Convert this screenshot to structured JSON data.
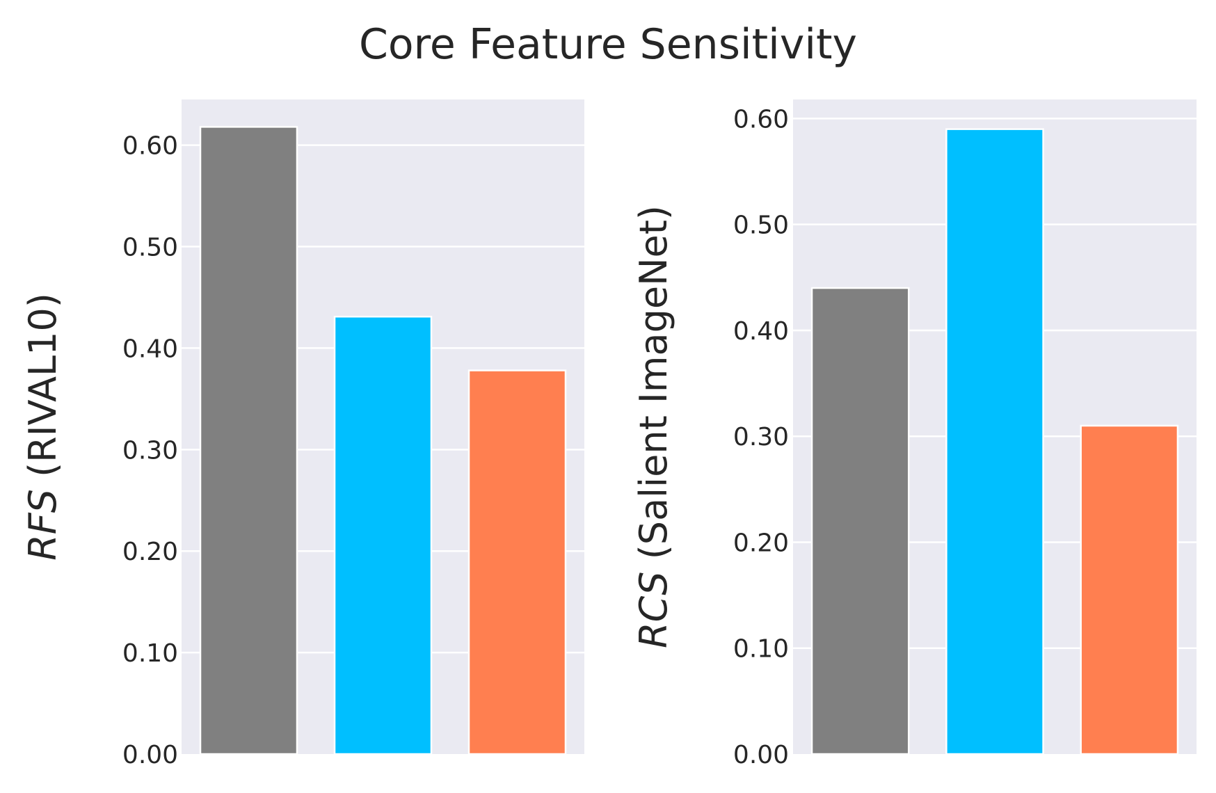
{
  "chart_data": {
    "title": "Core Feature Sensitivity",
    "type": "bar",
    "panels": [
      {
        "ylabel_metric": "RFS",
        "ylabel_dataset": "(RIVAL10)",
        "ylim": [
          0,
          0.645
        ],
        "yticks": [
          0.0,
          0.1,
          0.2,
          0.3,
          0.4,
          0.5,
          0.6
        ],
        "ytick_labels": [
          "0.00",
          "0.10",
          "0.20",
          "0.30",
          "0.40",
          "0.50",
          "0.60"
        ],
        "grid": true,
        "bars": [
          {
            "value": 0.618,
            "color": "#808080"
          },
          {
            "value": 0.431,
            "color": "#00BFFF"
          },
          {
            "value": 0.378,
            "color": "#FF7F50"
          }
        ]
      },
      {
        "ylabel_metric": "RCS",
        "ylabel_dataset": "(Salient ImageNet)",
        "ylim": [
          0,
          0.618
        ],
        "yticks": [
          0.0,
          0.1,
          0.2,
          0.3,
          0.4,
          0.5,
          0.6
        ],
        "ytick_labels": [
          "0.00",
          "0.10",
          "0.20",
          "0.30",
          "0.40",
          "0.50",
          "0.60"
        ],
        "grid": true,
        "bars": [
          {
            "value": 0.44,
            "color": "#808080"
          },
          {
            "value": 0.59,
            "color": "#00BFFF"
          },
          {
            "value": 0.31,
            "color": "#FF7F50"
          }
        ]
      }
    ]
  }
}
